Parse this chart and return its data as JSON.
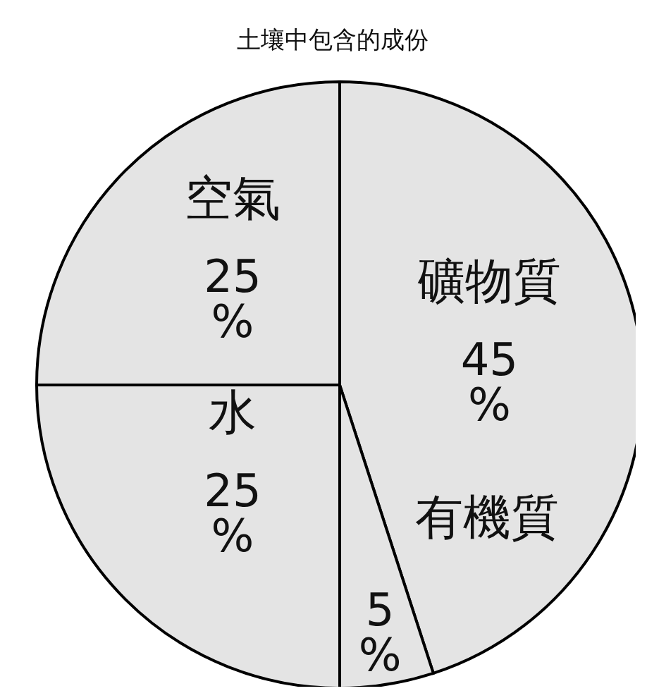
{
  "chart_data": {
    "type": "pie",
    "title": "土壤中包含的成份",
    "categories": [
      "礦物質",
      "有機質",
      "水",
      "空氣"
    ],
    "values": [
      45,
      5,
      25,
      25
    ],
    "colors": [
      "#e4e4e4",
      "#e4e4e4",
      "#e4e4e4",
      "#e4e4e4"
    ],
    "value_labels": [
      "45%",
      "5%",
      "25%",
      "25%"
    ],
    "legend": false
  }
}
